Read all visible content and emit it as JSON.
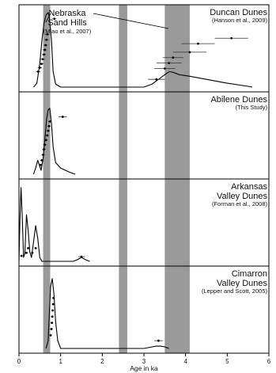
{
  "chart_data": {
    "type": "line",
    "xlabel": "Age in ka",
    "xlim": [
      0,
      6
    ],
    "xticks": [
      0,
      1,
      2,
      3,
      4,
      5,
      6
    ],
    "highlight_bands": [
      [
        0.58,
        0.75
      ],
      [
        2.4,
        2.6
      ],
      [
        3.5,
        4.1
      ]
    ],
    "callout": {
      "title_lines": [
        "Nebraska",
        "Sand Hills"
      ],
      "citation": "(Miao et al., 2007)"
    },
    "panels": [
      {
        "title_lines": [
          "Duncan Dunes"
        ],
        "citation": "(Hanson et al., 2009)",
        "density": [
          [
            0.35,
            0.0
          ],
          [
            0.43,
            0.05
          ],
          [
            0.5,
            0.3
          ],
          [
            0.55,
            0.6
          ],
          [
            0.6,
            0.82
          ],
          [
            0.65,
            0.93
          ],
          [
            0.7,
            0.96
          ],
          [
            0.73,
            0.9
          ],
          [
            0.78,
            0.6
          ],
          [
            0.82,
            0.2
          ],
          [
            0.88,
            0.04
          ],
          [
            1.0,
            0.0
          ],
          [
            3.0,
            0.0
          ],
          [
            3.2,
            0.04
          ],
          [
            3.4,
            0.12
          ],
          [
            3.55,
            0.18
          ],
          [
            3.62,
            0.2
          ],
          [
            3.7,
            0.19
          ],
          [
            3.85,
            0.16
          ],
          [
            4.1,
            0.14
          ],
          [
            4.5,
            0.1
          ],
          [
            5.0,
            0.05
          ],
          [
            5.5,
            0.01
          ],
          [
            5.6,
            0.0
          ]
        ],
        "dates": [
          [
            0.46,
            0.2,
            0.05
          ],
          [
            0.5,
            0.25,
            0.05
          ],
          [
            0.54,
            0.3,
            0.05
          ],
          [
            0.57,
            0.36,
            0.05
          ],
          [
            0.6,
            0.42,
            0.05
          ],
          [
            0.62,
            0.48,
            0.05
          ],
          [
            0.64,
            0.54,
            0.05
          ],
          [
            0.66,
            0.61,
            0.05
          ],
          [
            0.68,
            0.68,
            0.05
          ],
          [
            0.85,
            0.88,
            0.05
          ],
          [
            3.3,
            0.1,
            0.2
          ],
          [
            3.5,
            0.24,
            0.25
          ],
          [
            3.6,
            0.31,
            0.3
          ],
          [
            3.7,
            0.38,
            0.25
          ],
          [
            4.1,
            0.45,
            0.4
          ],
          [
            4.3,
            0.56,
            0.4
          ],
          [
            5.1,
            0.63,
            0.4
          ]
        ]
      },
      {
        "title_lines": [
          "Abilene Dunes"
        ],
        "citation": "(This Study)",
        "density": [
          [
            0.35,
            0.0
          ],
          [
            0.4,
            0.08
          ],
          [
            0.45,
            0.18
          ],
          [
            0.5,
            0.1
          ],
          [
            0.53,
            0.05
          ],
          [
            0.58,
            0.2
          ],
          [
            0.62,
            0.45
          ],
          [
            0.66,
            0.7
          ],
          [
            0.7,
            0.83
          ],
          [
            0.74,
            0.85
          ],
          [
            0.78,
            0.65
          ],
          [
            0.82,
            0.35
          ],
          [
            0.88,
            0.15
          ],
          [
            1.0,
            0.08
          ],
          [
            1.2,
            0.03
          ],
          [
            1.35,
            0.0
          ]
        ],
        "dates": [
          [
            0.52,
            0.12,
            0.04
          ],
          [
            0.55,
            0.18,
            0.04
          ],
          [
            0.58,
            0.25,
            0.04
          ],
          [
            0.6,
            0.32,
            0.04
          ],
          [
            0.62,
            0.38,
            0.04
          ],
          [
            0.65,
            0.44,
            0.04
          ],
          [
            0.68,
            0.5,
            0.04
          ],
          [
            0.7,
            0.56,
            0.04
          ],
          [
            0.72,
            0.62,
            0.04
          ],
          [
            0.74,
            0.68,
            0.04
          ],
          [
            1.05,
            0.74,
            0.1
          ]
        ]
      },
      {
        "title_lines": [
          "Arkansas",
          "Valley Dunes"
        ],
        "citation": "(Forman et al., 2008)",
        "density": [
          [
            0.0,
            0.0
          ],
          [
            0.02,
            0.5
          ],
          [
            0.05,
            0.95
          ],
          [
            0.08,
            0.55
          ],
          [
            0.11,
            0.05
          ],
          [
            0.14,
            0.1
          ],
          [
            0.18,
            0.6
          ],
          [
            0.22,
            0.4
          ],
          [
            0.26,
            0.12
          ],
          [
            0.3,
            0.05
          ],
          [
            0.35,
            0.25
          ],
          [
            0.4,
            0.46
          ],
          [
            0.45,
            0.3
          ],
          [
            0.5,
            0.05
          ],
          [
            0.55,
            0.0
          ],
          [
            1.3,
            0.0
          ],
          [
            1.4,
            0.02
          ],
          [
            1.5,
            0.05
          ],
          [
            1.6,
            0.02
          ],
          [
            1.7,
            0.0
          ]
        ],
        "dates": [
          [
            0.06,
            0.07,
            0.03
          ],
          [
            0.18,
            0.11,
            0.03
          ],
          [
            0.22,
            0.17,
            0.03
          ],
          [
            0.32,
            0.11,
            0.03
          ],
          [
            0.4,
            0.17,
            0.03
          ],
          [
            1.5,
            0.06,
            0.08
          ]
        ]
      },
      {
        "title_lines": [
          "Cimarron",
          "Valley Dunes"
        ],
        "citation": "(Lepper and Scott, 2005)",
        "density": [
          [
            0.65,
            0.0
          ],
          [
            0.7,
            0.1
          ],
          [
            0.73,
            0.45
          ],
          [
            0.76,
            0.8
          ],
          [
            0.8,
            0.9
          ],
          [
            0.84,
            0.7
          ],
          [
            0.88,
            0.35
          ],
          [
            0.93,
            0.1
          ],
          [
            1.0,
            0.0
          ],
          [
            3.0,
            0.0
          ],
          [
            3.2,
            0.02
          ],
          [
            3.3,
            0.03
          ],
          [
            3.4,
            0.03
          ],
          [
            3.5,
            0.02
          ],
          [
            3.6,
            0.0
          ]
        ],
        "dates": [
          [
            0.76,
            0.17,
            0.03
          ],
          [
            0.78,
            0.25,
            0.03
          ],
          [
            0.79,
            0.33,
            0.03
          ],
          [
            0.8,
            0.41,
            0.03
          ],
          [
            0.81,
            0.49,
            0.03
          ],
          [
            0.82,
            0.57,
            0.03
          ],
          [
            0.83,
            0.65,
            0.03
          ],
          [
            3.35,
            0.1,
            0.1
          ]
        ]
      }
    ]
  }
}
